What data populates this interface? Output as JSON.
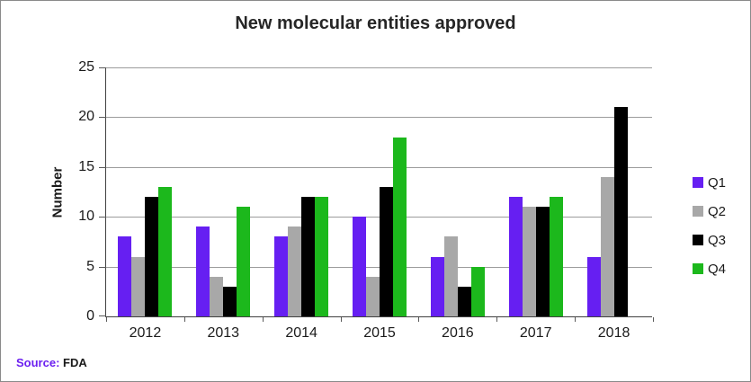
{
  "chart_data": {
    "type": "bar",
    "title": "New molecular entities approved",
    "xlabel": "",
    "ylabel": "Number",
    "categories": [
      "2012",
      "2013",
      "2014",
      "2015",
      "2016",
      "2017",
      "2018"
    ],
    "series": [
      {
        "name": "Q1",
        "color": "#661ff2",
        "values": [
          8,
          9,
          8,
          10,
          6,
          12,
          6
        ]
      },
      {
        "name": "Q2",
        "color": "#a8a8a8",
        "values": [
          6,
          4,
          9,
          4,
          8,
          11,
          14
        ]
      },
      {
        "name": "Q3",
        "color": "#000000",
        "values": [
          12,
          3,
          12,
          13,
          3,
          11,
          21
        ]
      },
      {
        "name": "Q4",
        "color": "#1cb81c",
        "values": [
          13,
          11,
          12,
          18,
          5,
          12,
          null
        ]
      }
    ],
    "ylim": [
      0,
      25
    ],
    "yticks": [
      0,
      5,
      10,
      15,
      20,
      25
    ],
    "grid": true,
    "legend_position": "right"
  },
  "source": {
    "label": "Source:",
    "value": "FDA"
  }
}
